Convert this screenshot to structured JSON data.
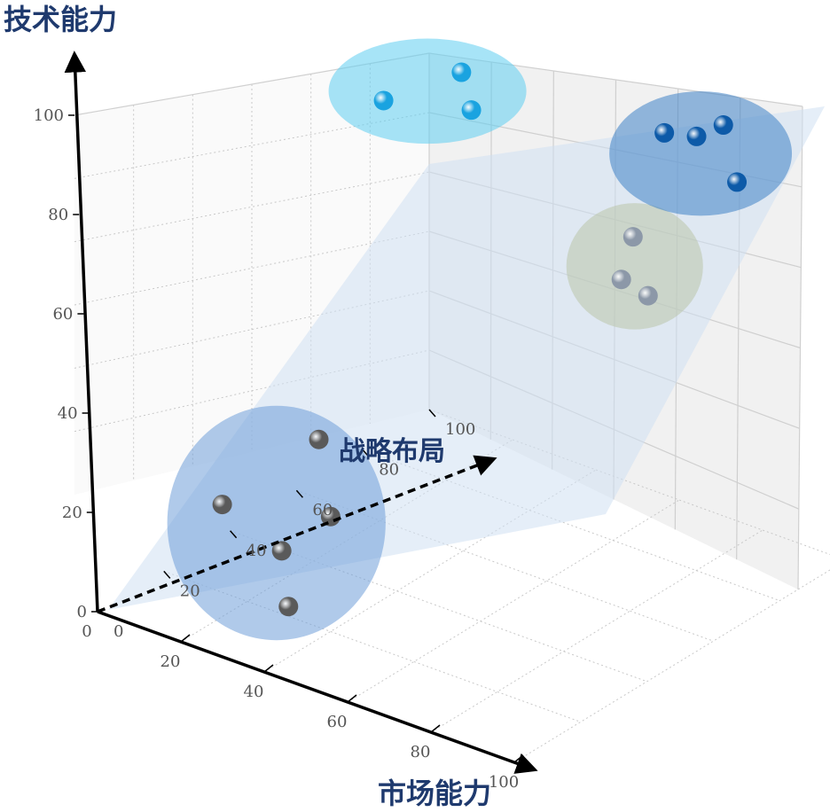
{
  "chart_data": {
    "type": "scatter",
    "projection": "3d",
    "axes": {
      "z": {
        "label": "技术能力",
        "ticks": [
          "0",
          "20",
          "40",
          "60",
          "80",
          "100"
        ],
        "range": [
          0,
          100
        ]
      },
      "x": {
        "label": "市场能力",
        "ticks": [
          "0",
          "20",
          "40",
          "60",
          "80",
          "100"
        ],
        "range": [
          0,
          100
        ]
      },
      "y": {
        "label": "战略布局",
        "ticks": [
          "0",
          "20",
          "40",
          "60",
          "80",
          "100"
        ],
        "range": [
          0,
          100
        ],
        "line_style": "dashed"
      }
    },
    "grid": true,
    "plane_color": "#cfe0f3",
    "clusters": [
      {
        "ellipse_color": "#6f9fd8",
        "point_color": "#5a5a5a",
        "points": [
          [
            15,
            20,
            18
          ],
          [
            28,
            36,
            13
          ],
          [
            16,
            48,
            20
          ],
          [
            19,
            32,
            5
          ],
          [
            30,
            20,
            2
          ]
        ]
      },
      {
        "ellipse_color": "#5fcdf0",
        "point_color": "#1aa3e0",
        "points": [
          [
            24,
            62,
            85
          ],
          [
            30,
            78,
            86
          ],
          [
            32,
            78,
            79
          ]
        ]
      },
      {
        "ellipse_color": "#b9c4a9",
        "point_color": "#8c98a8",
        "points": [
          [
            70,
            78,
            65
          ],
          [
            75,
            68,
            62
          ],
          [
            78,
            72,
            58
          ]
        ]
      },
      {
        "ellipse_color": "#3e82c6",
        "point_color": "#0d5aa8",
        "points": [
          [
            73,
            85,
            84
          ],
          [
            80,
            86,
            85
          ],
          [
            85,
            88,
            88
          ],
          [
            86,
            90,
            76
          ]
        ]
      }
    ]
  }
}
